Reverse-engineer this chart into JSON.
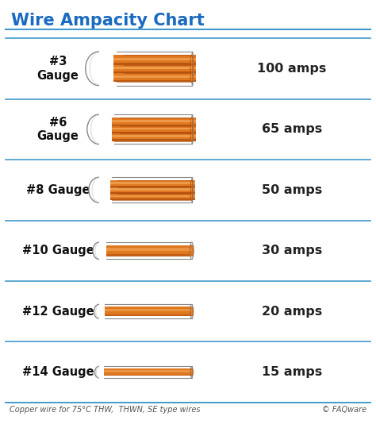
{
  "title": "Wire Ampacity Chart",
  "title_color": "#1a6abf",
  "bg_color": "#ffffff",
  "line_color": "#4499cc",
  "footer_text": "Copper wire for 75°C THW,  THWN, SE type wires",
  "copyright_text": "© FAQware",
  "rows": [
    {
      "gauge": "#3\nGauge",
      "amps": "100 amps",
      "strands": 7,
      "cr": 0.4,
      "sr": 0.115
    },
    {
      "gauge": "#6\nGauge",
      "amps": "65 amps",
      "strands": 7,
      "cr": 0.35,
      "sr": 0.1
    },
    {
      "gauge": "#8 Gauge",
      "amps": "50 amps",
      "strands": 7,
      "cr": 0.3,
      "sr": 0.085
    },
    {
      "gauge": "#10 Gauge",
      "amps": "30 amps",
      "strands": 1,
      "cr": 0.2,
      "sr": 0.135
    },
    {
      "gauge": "#12 Gauge",
      "amps": "20 amps",
      "strands": 1,
      "cr": 0.165,
      "sr": 0.11
    },
    {
      "gauge": "#14 Gauge",
      "amps": "15 amps",
      "strands": 1,
      "cr": 0.135,
      "sr": 0.09
    }
  ],
  "wire_color": "#e07820",
  "wire_highlight": "#f0a050",
  "wire_dark": "#b05010",
  "wire_shadow": "#9a4408",
  "insulation_color": "#ffffff",
  "insulation_edge": "#888888",
  "insulation_inner": "#dddddd"
}
